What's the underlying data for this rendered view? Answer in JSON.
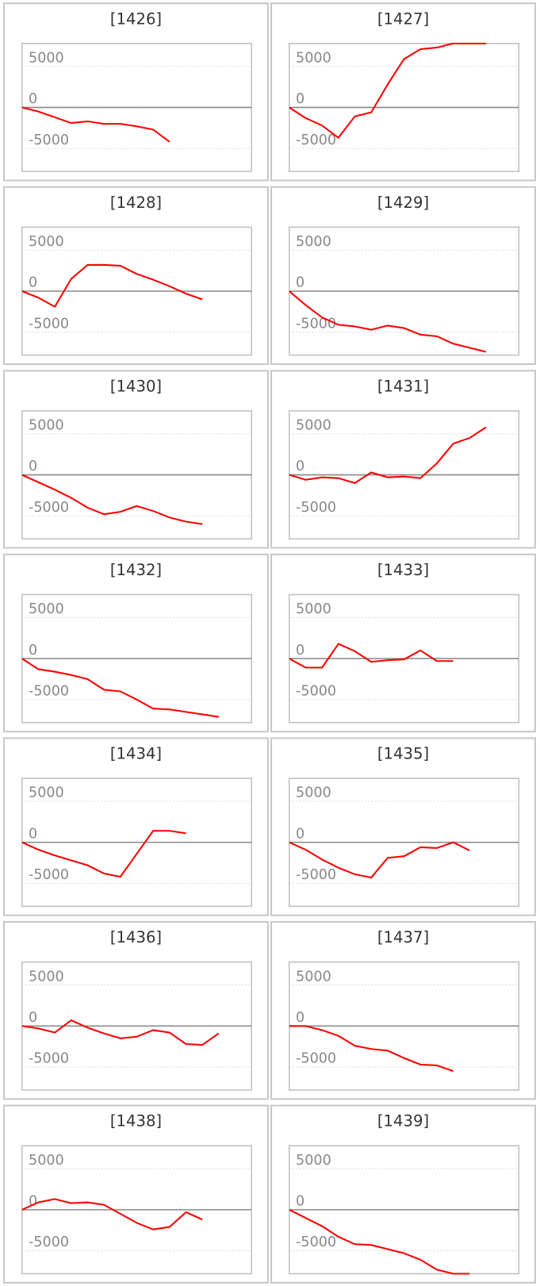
{
  "chart_data": [
    {
      "type": "line",
      "title": "[1426]",
      "color": "#ff0000",
      "ylim": [
        -7800,
        7800
      ],
      "yticks": [
        5000,
        0,
        -5000
      ],
      "values": [
        0,
        -500,
        -1200,
        -1900,
        -1700,
        -2000,
        -2000,
        -2300,
        -2700,
        -4200
      ]
    },
    {
      "type": "line",
      "title": "[1427]",
      "color": "#ff0000",
      "ylim": [
        -7800,
        7800
      ],
      "yticks": [
        5000,
        0,
        -5000
      ],
      "values": [
        0,
        -1300,
        -2200,
        -3700,
        -1100,
        -600,
        2800,
        5900,
        7100,
        7300,
        7800,
        7800,
        7800
      ]
    },
    {
      "type": "line",
      "title": "[1428]",
      "color": "#ff0000",
      "ylim": [
        -7800,
        7800
      ],
      "yticks": [
        5000,
        0,
        -5000
      ],
      "values": [
        0,
        -800,
        -1900,
        1500,
        3200,
        3200,
        3100,
        2100,
        1400,
        600,
        -300,
        -1000
      ]
    },
    {
      "type": "line",
      "title": "[1429]",
      "color": "#ff0000",
      "ylim": [
        -7800,
        7800
      ],
      "yticks": [
        5000,
        0,
        -5000
      ],
      "values": [
        0,
        -1700,
        -3200,
        -4100,
        -4300,
        -4700,
        -4200,
        -4500,
        -5300,
        -5500,
        -6400,
        -6900,
        -7400
      ]
    },
    {
      "type": "line",
      "title": "[1430]",
      "color": "#ff0000",
      "ylim": [
        -7800,
        7800
      ],
      "yticks": [
        5000,
        0,
        -5000
      ],
      "values": [
        0,
        -900,
        -1800,
        -2800,
        -4000,
        -4800,
        -4500,
        -3800,
        -4400,
        -5200,
        -5700,
        -6000
      ]
    },
    {
      "type": "line",
      "title": "[1431]",
      "color": "#ff0000",
      "ylim": [
        -7800,
        7800
      ],
      "yticks": [
        5000,
        0,
        -5000
      ],
      "values": [
        0,
        -600,
        -300,
        -400,
        -1000,
        300,
        -300,
        -200,
        -400,
        1400,
        3800,
        4500,
        5800
      ]
    },
    {
      "type": "line",
      "title": "[1432]",
      "color": "#ff0000",
      "ylim": [
        -7800,
        7800
      ],
      "yticks": [
        5000,
        0,
        -5000
      ],
      "values": [
        0,
        -1300,
        -1600,
        -2000,
        -2500,
        -3800,
        -4000,
        -5000,
        -6100,
        -6200,
        -6500,
        -6800,
        -7100
      ]
    },
    {
      "type": "line",
      "title": "[1433]",
      "color": "#ff0000",
      "ylim": [
        -7800,
        7800
      ],
      "yticks": [
        5000,
        0,
        -5000
      ],
      "values": [
        0,
        -1100,
        -1100,
        1800,
        900,
        -400,
        -200,
        -100,
        1000,
        -300,
        -300
      ]
    },
    {
      "type": "line",
      "title": "[1434]",
      "color": "#ff0000",
      "ylim": [
        -7800,
        7800
      ],
      "yticks": [
        5000,
        0,
        -5000
      ],
      "values": [
        0,
        -900,
        -1600,
        -2200,
        -2800,
        -3800,
        -4200,
        -1400,
        1400,
        1400,
        1100
      ]
    },
    {
      "type": "line",
      "title": "[1435]",
      "color": "#ff0000",
      "ylim": [
        -7800,
        7800
      ],
      "yticks": [
        5000,
        0,
        -5000
      ],
      "values": [
        0,
        -900,
        -2100,
        -3100,
        -3900,
        -4300,
        -1900,
        -1700,
        -600,
        -700,
        0,
        -1000
      ]
    },
    {
      "type": "line",
      "title": "[1436]",
      "color": "#ff0000",
      "ylim": [
        -7800,
        7800
      ],
      "yticks": [
        5000,
        0,
        -5000
      ],
      "values": [
        0,
        -300,
        -800,
        700,
        -200,
        -900,
        -1500,
        -1300,
        -500,
        -800,
        -2200,
        -2300,
        -900
      ]
    },
    {
      "type": "line",
      "title": "[1437]",
      "color": "#ff0000",
      "ylim": [
        -7800,
        7800
      ],
      "yticks": [
        5000,
        0,
        -5000
      ],
      "values": [
        0,
        0,
        -500,
        -1200,
        -2400,
        -2800,
        -3000,
        -3900,
        -4700,
        -4800,
        -5500
      ]
    },
    {
      "type": "line",
      "title": "[1438]",
      "color": "#ff0000",
      "ylim": [
        -7800,
        7800
      ],
      "yticks": [
        5000,
        0,
        -5000
      ],
      "values": [
        0,
        900,
        1300,
        800,
        900,
        600,
        -500,
        -1600,
        -2400,
        -2100,
        -300,
        -1200
      ]
    },
    {
      "type": "line",
      "title": "[1439]",
      "color": "#ff0000",
      "ylim": [
        -7800,
        7800
      ],
      "yticks": [
        5000,
        0,
        -5000
      ],
      "values": [
        0,
        -1000,
        -2000,
        -3300,
        -4200,
        -4300,
        -4800,
        -5300,
        -6100,
        -7300,
        -7800,
        -7800
      ]
    }
  ]
}
